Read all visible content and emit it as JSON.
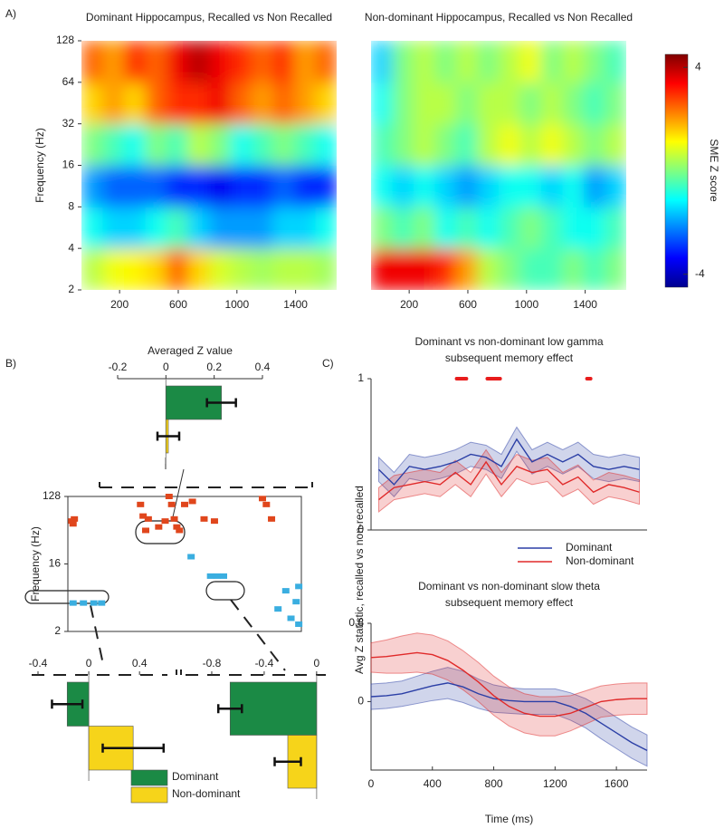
{
  "panel_labels": [
    "A)",
    "B)",
    "C)"
  ],
  "chart_data": [
    {
      "type": "heatmap",
      "title": "Dominant Hippocampus, Recalled vs Non Recalled",
      "ylabel": "Frequency (Hz)",
      "xlim": [
        -60,
        1680
      ],
      "ylim": [
        2,
        128
      ],
      "ylog": true,
      "xticks": [
        200,
        600,
        1000,
        1400
      ],
      "yticks": [
        2,
        4,
        8,
        16,
        32,
        64,
        128
      ],
      "xbins": [
        -60,
        85,
        230,
        375,
        520,
        665,
        810,
        955,
        1100,
        1245,
        1390,
        1535,
        1680
      ],
      "ybins": [
        2,
        4,
        8,
        16,
        32,
        64,
        128
      ],
      "zlim": [
        -4.5,
        4.5
      ],
      "colormap": "jet",
      "z": [
        [
          0.5,
          1,
          1.2,
          1.5,
          2.5,
          1.5,
          0.8,
          0.5,
          0.3,
          0.5,
          0.5,
          0.3
        ],
        [
          -1,
          -1.5,
          -1.5,
          -1,
          -0.5,
          -1.5,
          -2,
          -2,
          -2,
          -1.5,
          -1.5,
          -1
        ],
        [
          -2,
          -2.5,
          -2.5,
          -2.5,
          -3,
          -3,
          -3.5,
          -3,
          -3,
          -2.5,
          -3,
          -3
        ],
        [
          0,
          -0.5,
          -1,
          0,
          -0.5,
          0.5,
          0,
          -1,
          -0.5,
          0,
          -0.5,
          -1
        ],
        [
          1.5,
          2,
          1.5,
          2.5,
          3,
          3,
          3.5,
          2.5,
          2,
          2.5,
          2,
          1.5
        ],
        [
          2.5,
          2,
          3,
          2.5,
          3.5,
          4,
          3.5,
          3,
          2.5,
          3,
          2,
          2.5
        ]
      ]
    },
    {
      "type": "heatmap",
      "title": "Non-dominant Hippocampus, Recalled vs Non Recalled",
      "xlim": [
        -60,
        1680
      ],
      "ylim": [
        2,
        128
      ],
      "ylog": true,
      "xticks": [
        200,
        600,
        1000,
        1400
      ],
      "xbins": [
        -60,
        85,
        230,
        375,
        520,
        665,
        810,
        955,
        1100,
        1245,
        1390,
        1535,
        1680
      ],
      "ybins": [
        2,
        4,
        8,
        16,
        32,
        64,
        128
      ],
      "zlim": [
        -4.5,
        4.5
      ],
      "zticks": [
        -4,
        4
      ],
      "zlabel": "SME Z score",
      "colormap": "jet",
      "z": [
        [
          3.5,
          3.5,
          3.5,
          3,
          2,
          0.5,
          0,
          -0.5,
          -0.5,
          0,
          -0.5,
          0
        ],
        [
          0,
          -0.5,
          0,
          -1,
          -0.5,
          -1,
          -0.5,
          0,
          -0.5,
          -1,
          -1,
          -0.5
        ],
        [
          -1,
          -1.5,
          -1,
          -1.5,
          -2,
          -1.5,
          -1,
          -1,
          -1.5,
          -1,
          -2,
          -1.5
        ],
        [
          -0.5,
          0,
          0.5,
          0,
          -0.5,
          0.5,
          1,
          0.5,
          1,
          0.5,
          0,
          0.5
        ],
        [
          -1,
          0,
          0.5,
          0.5,
          0,
          0.5,
          0.5,
          0,
          0.5,
          0,
          -0.5,
          0
        ],
        [
          -1.5,
          0,
          0.5,
          0,
          0.5,
          0,
          0.5,
          1,
          0,
          0.5,
          0,
          -0.5
        ]
      ]
    },
    {
      "type": "hbar",
      "xlabel": "Averaged Z value",
      "xlim": [
        -0.2,
        0.4
      ],
      "xticks": [
        -0.2,
        0,
        0.2,
        0.4
      ],
      "series": [
        {
          "color": "#1b8a45",
          "values": [
            0.23
          ],
          "error": [
            0.06
          ]
        },
        {
          "color": "#f6d41a",
          "values": [
            0.01
          ],
          "error": [
            0.045
          ]
        }
      ]
    },
    {
      "type": "cluster",
      "ylabel": "Frequency (Hz)",
      "xlim": [
        0,
        1800
      ],
      "ylim": [
        2,
        128
      ],
      "ylog": true,
      "yticks": [
        2,
        16,
        128
      ],
      "series": [
        {
          "color": "#e0461c",
          "x": [
            30,
            40,
            50,
            560,
            580,
            600,
            620,
            700,
            750,
            780,
            800,
            820,
            840,
            860,
            900,
            960,
            1050,
            1130,
            1500,
            1530,
            1570
          ],
          "values": [
            60,
            55,
            64,
            100,
            70,
            45,
            64,
            50,
            60,
            128,
            100,
            64,
            50,
            45,
            100,
            110,
            64,
            60,
            120,
            100,
            64
          ]
        },
        {
          "color": "#3aaee0",
          "x": [
            40,
            120,
            200,
            260,
            950,
            1100,
            1150,
            1200,
            1620,
            1680,
            1720,
            1760,
            1780,
            1780
          ],
          "values": [
            4.8,
            4.8,
            4.8,
            4.8,
            20,
            11,
            11,
            11,
            4,
            7,
            3,
            5,
            8,
            2.5
          ]
        }
      ]
    },
    {
      "type": "hbar",
      "xlim": [
        -0.45,
        0.62
      ],
      "xticks": [
        -0.4,
        0,
        0.4
      ],
      "series": [
        {
          "name": "Dominant",
          "color": "#1b8a45",
          "values": [
            -0.17
          ],
          "error": [
            0.12
          ]
        },
        {
          "name": "Non-dominant",
          "color": "#f6d41a",
          "values": [
            0.35
          ],
          "error": [
            0.24
          ]
        }
      ]
    },
    {
      "type": "hbar",
      "xlim": [
        -1.0,
        0.07
      ],
      "xticks": [
        -0.8,
        -0.4,
        0
      ],
      "series": [
        {
          "color": "#1b8a45",
          "values": [
            -0.66
          ],
          "error": [
            0.09
          ]
        },
        {
          "color": "#f6d41a",
          "values": [
            -0.22
          ],
          "error": [
            0.1
          ]
        }
      ]
    },
    {
      "type": "line",
      "title": [
        "Dominant vs non-dominant low gamma",
        "subsequent memory effect"
      ],
      "ylabel": "Avg Z statistic, recalled vs non-recalled",
      "xlim": [
        0,
        1800
      ],
      "ylim": [
        0,
        1
      ],
      "yticks": [
        0,
        1
      ],
      "x": [
        50,
        150,
        250,
        350,
        450,
        550,
        650,
        750,
        850,
        950,
        1050,
        1150,
        1250,
        1350,
        1450,
        1550,
        1650,
        1750
      ],
      "series": [
        {
          "name": "Dominant",
          "color": "#2b3fa6",
          "values": [
            0.4,
            0.3,
            0.42,
            0.4,
            0.42,
            0.45,
            0.5,
            0.48,
            0.42,
            0.6,
            0.45,
            0.5,
            0.45,
            0.5,
            0.42,
            0.4,
            0.42,
            0.4
          ],
          "error": [
            0.08,
            0.08,
            0.08,
            0.08,
            0.08,
            0.08,
            0.08,
            0.08,
            0.08,
            0.08,
            0.08,
            0.08,
            0.08,
            0.08,
            0.08,
            0.08,
            0.08,
            0.08
          ]
        },
        {
          "name": "Non-dominant",
          "color": "#e02a2a",
          "values": [
            0.2,
            0.28,
            0.3,
            0.32,
            0.3,
            0.38,
            0.3,
            0.45,
            0.3,
            0.42,
            0.38,
            0.4,
            0.3,
            0.35,
            0.25,
            0.3,
            0.28,
            0.25
          ],
          "error": [
            0.08,
            0.08,
            0.08,
            0.08,
            0.08,
            0.08,
            0.08,
            0.08,
            0.08,
            0.08,
            0.08,
            0.08,
            0.08,
            0.08,
            0.08,
            0.08,
            0.08,
            0.08
          ]
        }
      ],
      "significance": {
        "color": "#e81c1c",
        "x": [
          570,
          590,
          610,
          770,
          790,
          810,
          830,
          1420
        ],
        "values": [
          1,
          1,
          1,
          1,
          1,
          1,
          1,
          1
        ]
      }
    },
    {
      "type": "line",
      "title": [
        "Dominant vs non-dominant slow theta",
        "subsequent memory effect"
      ],
      "xlabel": "Time (ms)",
      "xlim": [
        0,
        1800
      ],
      "ylim": [
        -0.7,
        0.8
      ],
      "yticks": [
        0,
        0.8
      ],
      "xticks": [
        0,
        400,
        800,
        1200,
        1600
      ],
      "x": [
        0,
        100,
        200,
        300,
        400,
        500,
        600,
        700,
        800,
        900,
        1000,
        1100,
        1200,
        1300,
        1400,
        1500,
        1600,
        1700,
        1800
      ],
      "series": [
        {
          "color": "#2b3fa6",
          "values": [
            0.05,
            0.06,
            0.08,
            0.12,
            0.16,
            0.19,
            0.15,
            0.08,
            0.03,
            0.01,
            0,
            0,
            0,
            -0.05,
            -0.12,
            -0.22,
            -0.32,
            -0.42,
            -0.5
          ],
          "error": [
            0.13,
            0.13,
            0.13,
            0.14,
            0.15,
            0.16,
            0.16,
            0.15,
            0.14,
            0.13,
            0.13,
            0.13,
            0.13,
            0.14,
            0.15,
            0.16,
            0.16,
            0.16,
            0.16
          ]
        },
        {
          "color": "#e02a2a",
          "values": [
            0.45,
            0.46,
            0.48,
            0.5,
            0.48,
            0.42,
            0.32,
            0.2,
            0.06,
            -0.05,
            -0.12,
            -0.15,
            -0.15,
            -0.12,
            -0.06,
            0,
            0.02,
            0.03,
            0.03
          ],
          "error": [
            0.15,
            0.17,
            0.19,
            0.2,
            0.2,
            0.2,
            0.2,
            0.2,
            0.2,
            0.2,
            0.2,
            0.2,
            0.2,
            0.18,
            0.17,
            0.16,
            0.16,
            0.16,
            0.16
          ]
        }
      ]
    }
  ]
}
